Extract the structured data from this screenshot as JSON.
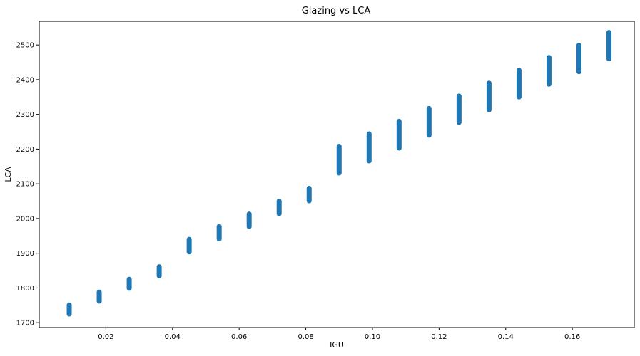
{
  "chart_data": {
    "type": "scatter",
    "title": "Glazing vs LCA",
    "xlabel": "IGU",
    "ylabel": "LCA",
    "xlim": [
      0.0,
      0.1786
    ],
    "ylim": [
      1686,
      2568
    ],
    "xticks": [
      0.02,
      0.04,
      0.06,
      0.08,
      0.1,
      0.12,
      0.14,
      0.16
    ],
    "xtick_labels": [
      "0.02",
      "0.04",
      "0.06",
      "0.08",
      "0.10",
      "0.12",
      "0.14",
      "0.16"
    ],
    "yticks": [
      1700,
      1800,
      1900,
      2000,
      2100,
      2200,
      2300,
      2400,
      2500
    ],
    "ytick_labels": [
      "1700",
      "1800",
      "1900",
      "2000",
      "2100",
      "2200",
      "2300",
      "2400",
      "2500"
    ],
    "grid": false,
    "marker_color": "#1f77b4",
    "series": [
      {
        "points": [
          {
            "x": 0.009,
            "y_min": 1725,
            "y_max": 1751
          },
          {
            "x": 0.018,
            "y_min": 1762,
            "y_max": 1788
          },
          {
            "x": 0.027,
            "y_min": 1799,
            "y_max": 1825
          },
          {
            "x": 0.036,
            "y_min": 1835,
            "y_max": 1861
          },
          {
            "x": 0.045,
            "y_min": 1904,
            "y_max": 1940
          },
          {
            "x": 0.054,
            "y_min": 1941,
            "y_max": 1977
          },
          {
            "x": 0.063,
            "y_min": 1977,
            "y_max": 2013
          },
          {
            "x": 0.072,
            "y_min": 2014,
            "y_max": 2050
          },
          {
            "x": 0.081,
            "y_min": 2051,
            "y_max": 2087
          },
          {
            "x": 0.09,
            "y_min": 2131,
            "y_max": 2208
          },
          {
            "x": 0.099,
            "y_min": 2166,
            "y_max": 2244
          },
          {
            "x": 0.108,
            "y_min": 2203,
            "y_max": 2280
          },
          {
            "x": 0.117,
            "y_min": 2240,
            "y_max": 2317
          },
          {
            "x": 0.126,
            "y_min": 2277,
            "y_max": 2353
          },
          {
            "x": 0.135,
            "y_min": 2313,
            "y_max": 2390
          },
          {
            "x": 0.144,
            "y_min": 2350,
            "y_max": 2427
          },
          {
            "x": 0.153,
            "y_min": 2387,
            "y_max": 2464
          },
          {
            "x": 0.162,
            "y_min": 2423,
            "y_max": 2499
          },
          {
            "x": 0.171,
            "y_min": 2460,
            "y_max": 2536
          }
        ]
      }
    ]
  }
}
